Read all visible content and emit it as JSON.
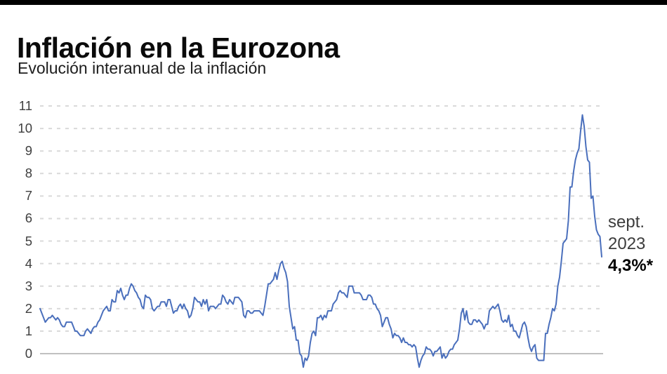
{
  "header": {
    "title": "Inflación en la Eurozona",
    "subtitle": "Evolución interanual de la inflación"
  },
  "annotation": {
    "line1": "sept.",
    "line2": "2023",
    "line3": "4,3%*"
  },
  "colors": {
    "top_bar": "#000000",
    "grid": "#d9d9d9",
    "zero_axis": "#ababab",
    "series": "#4a6fbc"
  },
  "chart_data": {
    "type": "line",
    "title": "Inflación en la Eurozona",
    "subtitle": "Evolución interanual de la inflación",
    "unit": "%",
    "frequency": "monthly",
    "x_start": "1997-01",
    "x_end": "2023-09",
    "xlabel": "",
    "ylabel": "",
    "ylim": [
      -1,
      11
    ],
    "yticks": [
      0,
      1,
      2,
      3,
      4,
      5,
      6,
      7,
      8,
      9,
      10,
      11
    ],
    "grid": "horizontal-dashed",
    "legend": "none",
    "line_color": "#4a6fbc",
    "latest_point_label": "sept. 2023",
    "latest_point_value": 4.3,
    "values": [
      2.0,
      1.8,
      1.6,
      1.4,
      1.5,
      1.6,
      1.6,
      1.7,
      1.6,
      1.5,
      1.6,
      1.5,
      1.3,
      1.2,
      1.2,
      1.4,
      1.4,
      1.4,
      1.4,
      1.2,
      1.0,
      1.0,
      0.9,
      0.8,
      0.8,
      0.8,
      1.0,
      1.1,
      1.0,
      0.9,
      1.1,
      1.2,
      1.2,
      1.4,
      1.5,
      1.7,
      1.9,
      2.0,
      2.1,
      1.9,
      1.9,
      2.4,
      2.3,
      2.3,
      2.8,
      2.7,
      2.9,
      2.6,
      2.4,
      2.6,
      2.6,
      2.9,
      3.1,
      3.0,
      2.8,
      2.7,
      2.5,
      2.4,
      2.1,
      2.0,
      2.6,
      2.5,
      2.5,
      2.4,
      2.0,
      1.9,
      2.0,
      2.1,
      2.1,
      2.3,
      2.3,
      2.3,
      2.1,
      2.4,
      2.4,
      2.1,
      1.8,
      1.9,
      1.9,
      2.1,
      2.2,
      2.0,
      2.2,
      2.0,
      1.9,
      1.6,
      1.7,
      2.0,
      2.5,
      2.4,
      2.3,
      2.3,
      2.1,
      2.4,
      2.2,
      2.4,
      1.9,
      2.1,
      2.1,
      2.1,
      2.0,
      2.1,
      2.2,
      2.2,
      2.6,
      2.5,
      2.3,
      2.2,
      2.4,
      2.3,
      2.2,
      2.5,
      2.5,
      2.5,
      2.4,
      2.3,
      1.7,
      1.6,
      1.9,
      1.9,
      1.8,
      1.8,
      1.9,
      1.9,
      1.9,
      1.9,
      1.8,
      1.7,
      2.1,
      2.6,
      3.1,
      3.1,
      3.2,
      3.3,
      3.6,
      3.3,
      3.7,
      4.0,
      4.1,
      3.8,
      3.6,
      3.2,
      2.1,
      1.6,
      1.1,
      1.2,
      0.6,
      0.6,
      0.0,
      -0.1,
      -0.6,
      -0.2,
      -0.3,
      -0.1,
      0.5,
      0.9,
      1.0,
      0.8,
      1.6,
      1.6,
      1.7,
      1.5,
      1.7,
      1.6,
      1.9,
      1.9,
      1.9,
      2.2,
      2.3,
      2.4,
      2.7,
      2.8,
      2.7,
      2.7,
      2.6,
      2.5,
      3.0,
      3.0,
      3.0,
      2.7,
      2.7,
      2.7,
      2.7,
      2.6,
      2.4,
      2.4,
      2.4,
      2.6,
      2.6,
      2.5,
      2.2,
      2.2,
      2.0,
      1.9,
      1.7,
      1.2,
      1.4,
      1.6,
      1.6,
      1.3,
      1.1,
      0.7,
      0.9,
      0.8,
      0.8,
      0.7,
      0.5,
      0.7,
      0.5,
      0.5,
      0.4,
      0.4,
      0.3,
      0.4,
      0.3,
      -0.2,
      -0.6,
      -0.3,
      -0.1,
      0.0,
      0.3,
      0.2,
      0.2,
      0.1,
      -0.1,
      0.1,
      0.1,
      0.2,
      0.3,
      -0.2,
      0.0,
      -0.2,
      -0.1,
      0.1,
      0.2,
      0.2,
      0.4,
      0.5,
      0.6,
      1.1,
      1.8,
      2.0,
      1.5,
      1.9,
      1.4,
      1.3,
      1.3,
      1.5,
      1.5,
      1.4,
      1.5,
      1.4,
      1.3,
      1.1,
      1.3,
      1.3,
      1.9,
      2.0,
      2.1,
      2.0,
      2.1,
      2.2,
      1.9,
      1.5,
      1.4,
      1.5,
      1.4,
      1.7,
      1.2,
      1.3,
      1.0,
      1.0,
      0.8,
      0.7,
      1.0,
      1.3,
      1.4,
      1.2,
      0.7,
      0.3,
      0.1,
      0.3,
      0.4,
      -0.2,
      -0.3,
      -0.3,
      -0.3,
      -0.3,
      0.9,
      0.9,
      1.3,
      1.6,
      2.0,
      1.9,
      2.2,
      3.0,
      3.4,
      4.1,
      4.9,
      5.0,
      5.1,
      5.9,
      7.4,
      7.4,
      8.1,
      8.6,
      8.9,
      9.1,
      9.9,
      10.6,
      10.1,
      9.2,
      8.6,
      8.5,
      6.9,
      7.0,
      6.1,
      5.5,
      5.3,
      5.2,
      4.3
    ]
  }
}
